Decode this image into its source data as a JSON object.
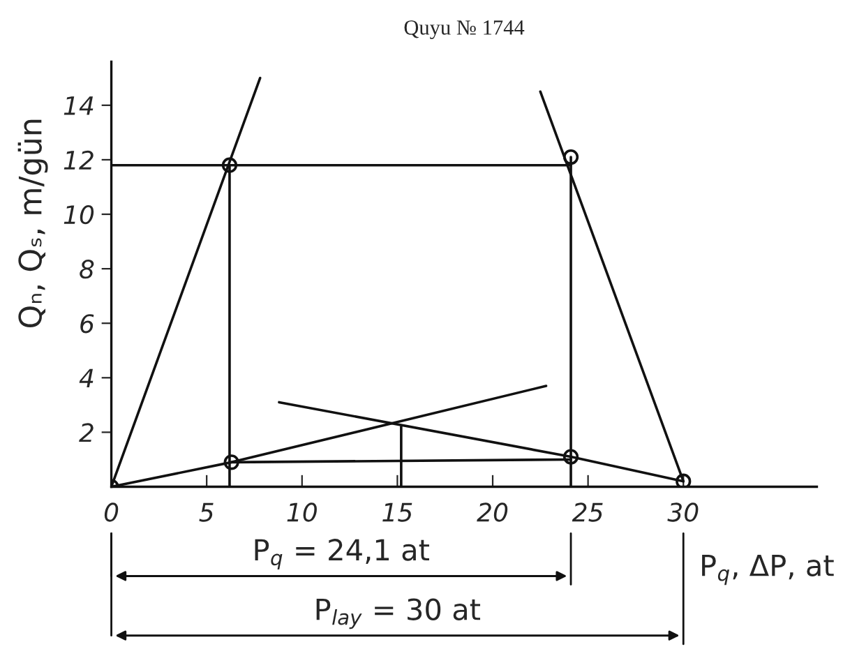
{
  "chart_data": {
    "type": "line",
    "title": "Quyu № 1744",
    "xlabel": "P$_{q}$, ΔP, at",
    "ylabel": "Qₙ, Qₛ, m/gün",
    "xlim": [
      0,
      37
    ],
    "ylim": [
      0,
      15.6
    ],
    "xticks": [
      0,
      5,
      10,
      15,
      20,
      25,
      30
    ],
    "yticks": [
      2,
      4,
      6,
      8,
      10,
      12,
      14
    ],
    "grid": false,
    "legend": false,
    "line_style": "solid",
    "series": [
      {
        "color": "#111111",
        "x": [
          0,
          7.8
        ],
        "values": [
          0,
          15.0
        ]
      },
      {
        "color": "#111111",
        "x": [
          30,
          22.5
        ],
        "values": [
          0.2,
          14.5
        ]
      },
      {
        "color": "#111111",
        "x": [
          0,
          6.3,
          22.8
        ],
        "values": [
          0,
          0.9,
          3.7
        ]
      },
      {
        "color": "#111111",
        "x": [
          8.8,
          24.1,
          30
        ],
        "values": [
          3.1,
          1.1,
          0.2
        ]
      },
      {
        "color": "#111111",
        "x": [
          0,
          24.1
        ],
        "values": [
          11.8,
          11.8
        ]
      },
      {
        "color": "#111111",
        "x": [
          6.2,
          6.2
        ],
        "values": [
          0,
          11.8
        ]
      },
      {
        "color": "#111111",
        "x": [
          24.1,
          24.1
        ],
        "values": [
          0,
          12.1
        ]
      },
      {
        "color": "#111111",
        "x": [
          6.3,
          24.1
        ],
        "values": [
          0.9,
          1.0
        ]
      },
      {
        "color": "#111111",
        "x": [
          15.2,
          15.2
        ],
        "values": [
          0,
          2.2
        ]
      },
      {
        "type": "scatter",
        "marker": "circle",
        "color": "#111111",
        "x": [
          0,
          6.2,
          6.3,
          24.1,
          24.1,
          30
        ],
        "values": [
          0,
          11.8,
          0.9,
          12.1,
          1.1,
          0.2
        ]
      }
    ],
    "annotations": [
      "P$_{q}$ = 24,1 at",
      "P$_{lay}$ = 30 at"
    ]
  }
}
